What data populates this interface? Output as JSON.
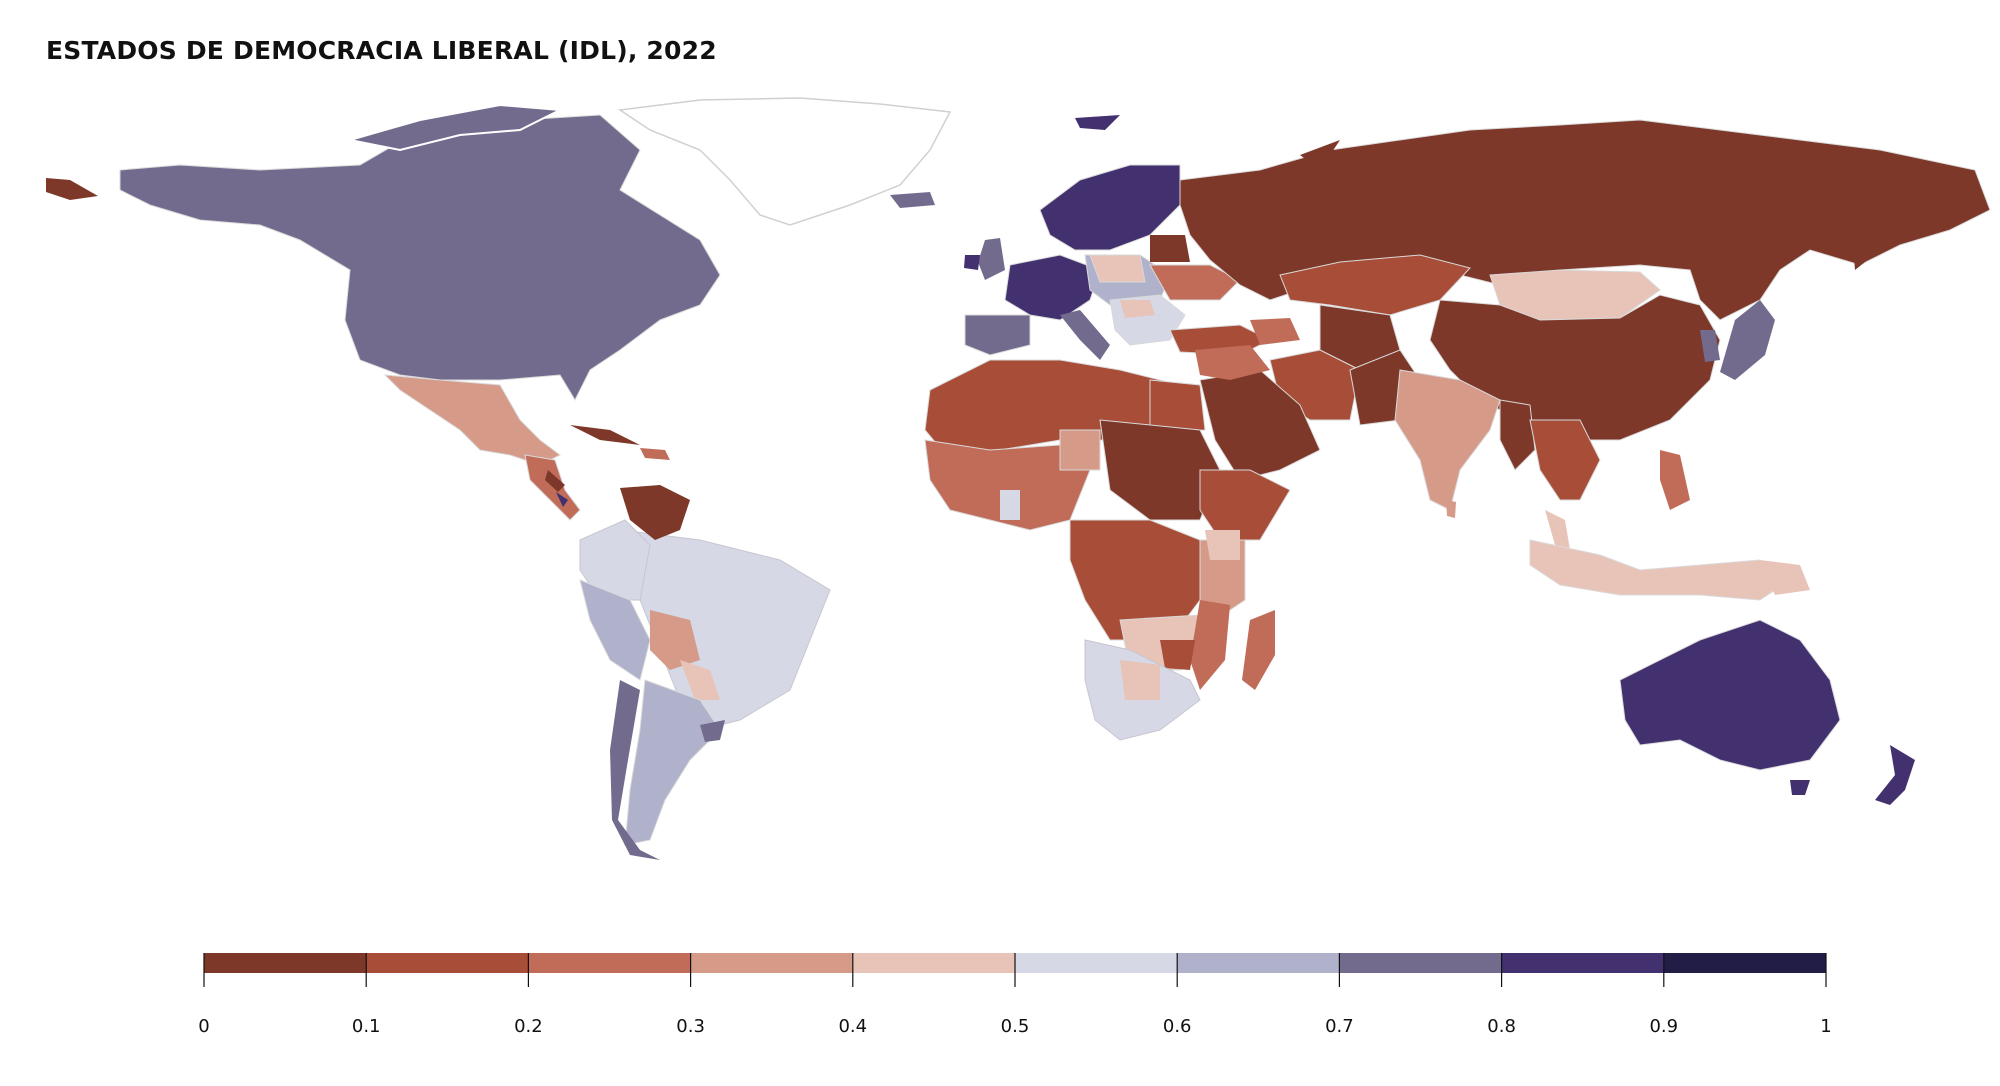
{
  "title": "ESTADOS DE DEMOCRACIA LIBERAL (IDL), 2022",
  "legend": {
    "ticks": [
      "0",
      "0.1",
      "0.2",
      "0.3",
      "0.4",
      "0.5",
      "0.6",
      "0.7",
      "0.8",
      "0.9",
      "1"
    ],
    "colors": [
      "#7d3829",
      "#a84d38",
      "#c06c58",
      "#d69a88",
      "#e8c3b8",
      "#d6d8e6",
      "#b0b1cb",
      "#736b8e",
      "#43306f",
      "#211d47"
    ]
  },
  "colors": {
    "no_data": "#ffffff",
    "border": "#d9d9d9"
  }
}
